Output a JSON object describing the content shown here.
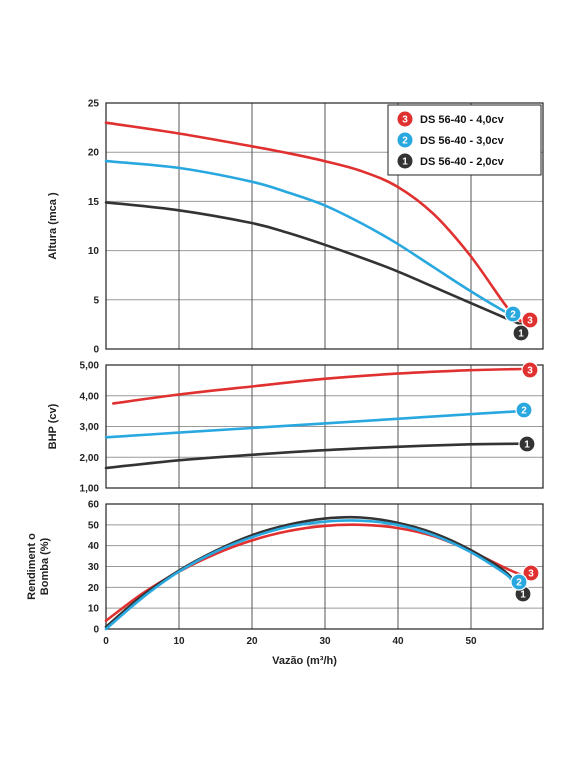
{
  "chart_data": [
    {
      "type": "line",
      "ylabel": "Altura (mca )",
      "xlim": [
        0,
        60
      ],
      "ylim": [
        0,
        25
      ],
      "yticks": [
        "0",
        "5",
        "10",
        "15",
        "20",
        "25"
      ],
      "grid": true,
      "legend_position": "top-right",
      "series": [
        {
          "name": "DS 56-40 - 4,0cv",
          "badge": "3",
          "color": "#e03030",
          "x": [
            0,
            10,
            20,
            25,
            30,
            35,
            40,
            45,
            50,
            55,
            57
          ],
          "y": [
            23,
            21.9,
            20.6,
            19.9,
            19.1,
            18.1,
            16.5,
            13.7,
            9.5,
            4.3,
            2.8
          ]
        },
        {
          "name": "DS 56-40 - 3,0cv",
          "badge": "2",
          "color": "#29a8e0",
          "x": [
            0,
            10,
            20,
            25,
            30,
            35,
            40,
            45,
            50,
            55,
            56
          ],
          "y": [
            19.1,
            18.4,
            17,
            15.9,
            14.6,
            12.8,
            10.7,
            8.3,
            5.9,
            3.7,
            3.4
          ]
        },
        {
          "name": "DS 56-40 - 2,0cv",
          "badge": "1",
          "color": "#333333",
          "x": [
            0,
            10,
            20,
            25,
            30,
            35,
            40,
            45,
            50,
            55,
            57
          ],
          "y": [
            14.9,
            14.1,
            12.8,
            11.8,
            10.6,
            9.3,
            7.9,
            6.3,
            4.7,
            3.1,
            2.5
          ]
        }
      ]
    },
    {
      "type": "line",
      "ylabel": "BHP   (cv)",
      "xlim": [
        0,
        60
      ],
      "ylim": [
        1,
        5
      ],
      "yticks": [
        "1,00",
        "2,00",
        "3,00",
        "4,00",
        "5,00"
      ],
      "grid": true,
      "series": [
        {
          "badge": "3",
          "color": "#e03030",
          "x": [
            1,
            10,
            20,
            30,
            40,
            50,
            57
          ],
          "y": [
            3.75,
            4.04,
            4.3,
            4.55,
            4.72,
            4.83,
            4.87
          ]
        },
        {
          "badge": "2",
          "color": "#29a8e0",
          "x": [
            0,
            10,
            20,
            30,
            40,
            50,
            57
          ],
          "y": [
            2.65,
            2.8,
            2.95,
            3.1,
            3.25,
            3.4,
            3.5
          ]
        },
        {
          "badge": "1",
          "color": "#333333",
          "x": [
            0,
            10,
            20,
            30,
            40,
            50,
            57
          ],
          "y": [
            1.65,
            1.9,
            2.08,
            2.23,
            2.34,
            2.42,
            2.44
          ]
        }
      ]
    },
    {
      "type": "line",
      "xlabel": "Vazão (m³/h)",
      "ylabel_lines": [
        "Rendiment o",
        "Bomba (%)"
      ],
      "xlim": [
        0,
        60
      ],
      "ylim": [
        0,
        60
      ],
      "xticks": [
        "0",
        "10",
        "20",
        "30",
        "40",
        "50"
      ],
      "yticks": [
        "0",
        "10",
        "20",
        "30",
        "40",
        "50",
        "60"
      ],
      "grid": true,
      "series": [
        {
          "badge": "3",
          "color": "#e03030",
          "x": [
            0,
            5,
            10,
            15,
            20,
            25,
            30,
            35,
            40,
            45,
            50,
            55,
            57
          ],
          "y": [
            4,
            17,
            27.5,
            36,
            42.5,
            47,
            49.5,
            50,
            48.5,
            44.5,
            37.5,
            29,
            26
          ]
        },
        {
          "badge": "1",
          "color": "#333333",
          "x": [
            0,
            5,
            10,
            15,
            20,
            25,
            30,
            35,
            40,
            45,
            50,
            55,
            57
          ],
          "y": [
            1,
            16,
            28,
            37.5,
            45,
            50,
            53,
            53.5,
            51,
            46,
            38,
            27,
            17
          ]
        },
        {
          "badge": "2",
          "color": "#29a8e0",
          "x": [
            0,
            5,
            10,
            15,
            20,
            25,
            30,
            35,
            40,
            45,
            50,
            55,
            56
          ],
          "y": [
            0,
            15,
            27.5,
            37,
            44,
            49,
            51.5,
            52,
            50,
            45,
            37,
            26,
            21
          ]
        }
      ]
    }
  ]
}
